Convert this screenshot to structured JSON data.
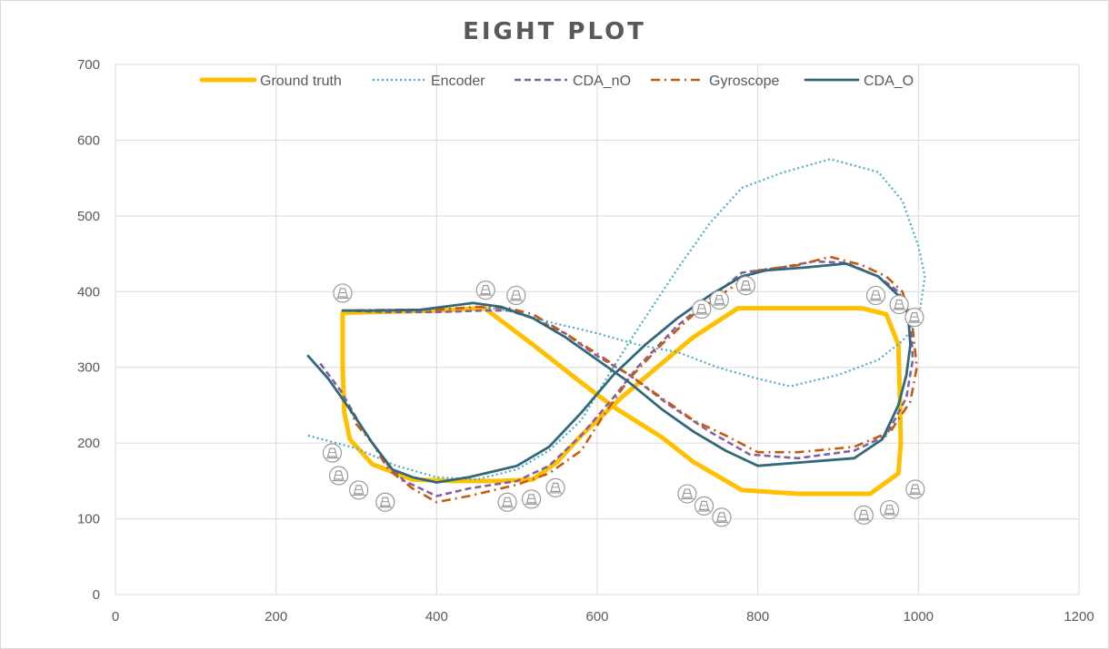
{
  "chart_data": {
    "type": "line",
    "title": "EIGHT PLOT",
    "xlabel": "",
    "ylabel": "",
    "xlim": [
      0,
      1200
    ],
    "ylim": [
      0,
      700
    ],
    "x_ticks": [
      "0",
      "200",
      "400",
      "600",
      "800",
      "1000",
      "1200"
    ],
    "y_ticks": [
      "0",
      "100",
      "200",
      "300",
      "400",
      "500",
      "600",
      "700"
    ],
    "grid": true,
    "legend_position": "top",
    "series": [
      {
        "name": "Ground truth",
        "color": "#FFC000",
        "style": "solid-thick",
        "points": [
          [
            283,
            372
          ],
          [
            400,
            375
          ],
          [
            460,
            378
          ],
          [
            520,
            330
          ],
          [
            580,
            280
          ],
          [
            620,
            248
          ],
          [
            680,
            208
          ],
          [
            720,
            175
          ],
          [
            780,
            138
          ],
          [
            850,
            133
          ],
          [
            940,
            133
          ],
          [
            975,
            160
          ],
          [
            978,
            200
          ],
          [
            977,
            260
          ],
          [
            975,
            330
          ],
          [
            960,
            370
          ],
          [
            930,
            378
          ],
          [
            850,
            378
          ],
          [
            775,
            378
          ],
          [
            720,
            340
          ],
          [
            680,
            305
          ],
          [
            630,
            260
          ],
          [
            580,
            210
          ],
          [
            550,
            175
          ],
          [
            520,
            152
          ],
          [
            480,
            150
          ],
          [
            420,
            150
          ],
          [
            370,
            152
          ],
          [
            320,
            172
          ],
          [
            292,
            205
          ],
          [
            285,
            240
          ],
          [
            283,
            300
          ],
          [
            283,
            372
          ]
        ]
      },
      {
        "name": "Encoder",
        "color": "#4BACC6",
        "style": "dotted",
        "points": [
          [
            240,
            210
          ],
          [
            300,
            193
          ],
          [
            350,
            170
          ],
          [
            400,
            155
          ],
          [
            450,
            152
          ],
          [
            500,
            165
          ],
          [
            540,
            190
          ],
          [
            580,
            230
          ],
          [
            620,
            300
          ],
          [
            650,
            350
          ],
          [
            700,
            430
          ],
          [
            740,
            490
          ],
          [
            780,
            537
          ],
          [
            830,
            557
          ],
          [
            890,
            575
          ],
          [
            950,
            558
          ],
          [
            980,
            520
          ],
          [
            1000,
            460
          ],
          [
            1008,
            420
          ],
          [
            1000,
            360
          ],
          [
            980,
            335
          ],
          [
            950,
            310
          ],
          [
            900,
            290
          ],
          [
            840,
            275
          ],
          [
            800,
            285
          ],
          [
            750,
            300
          ],
          [
            700,
            320
          ],
          [
            650,
            330
          ],
          [
            600,
            345
          ],
          [
            540,
            360
          ],
          [
            490,
            375
          ],
          [
            450,
            380
          ]
        ]
      },
      {
        "name": "CDA_nO",
        "color": "#8064A2",
        "style": "dashed",
        "points": [
          [
            255,
            305
          ],
          [
            280,
            270
          ],
          [
            310,
            215
          ],
          [
            340,
            170
          ],
          [
            360,
            150
          ],
          [
            400,
            130
          ],
          [
            440,
            140
          ],
          [
            500,
            150
          ],
          [
            540,
            170
          ],
          [
            580,
            210
          ],
          [
            620,
            260
          ],
          [
            650,
            300
          ],
          [
            700,
            355
          ],
          [
            740,
            390
          ],
          [
            780,
            425
          ],
          [
            830,
            432
          ],
          [
            870,
            440
          ],
          [
            910,
            438
          ],
          [
            950,
            420
          ],
          [
            975,
            400
          ],
          [
            990,
            370
          ],
          [
            993,
            310
          ],
          [
            985,
            260
          ],
          [
            960,
            210
          ],
          [
            920,
            190
          ],
          [
            850,
            180
          ],
          [
            790,
            185
          ],
          [
            740,
            215
          ],
          [
            690,
            250
          ],
          [
            640,
            290
          ],
          [
            600,
            315
          ],
          [
            560,
            345
          ],
          [
            520,
            365
          ],
          [
            490,
            375
          ],
          [
            460,
            375
          ],
          [
            400,
            373
          ],
          [
            340,
            373
          ],
          [
            283,
            375
          ]
        ]
      },
      {
        "name": "Gyroscope",
        "color": "#C55A11",
        "style": "dashdot",
        "points": [
          [
            290,
            250
          ],
          [
            300,
            225
          ],
          [
            320,
            200
          ],
          [
            340,
            165
          ],
          [
            370,
            140
          ],
          [
            400,
            122
          ],
          [
            440,
            130
          ],
          [
            500,
            145
          ],
          [
            540,
            160
          ],
          [
            580,
            190
          ],
          [
            610,
            240
          ],
          [
            640,
            285
          ],
          [
            680,
            330
          ],
          [
            720,
            370
          ],
          [
            760,
            400
          ],
          [
            800,
            428
          ],
          [
            850,
            435
          ],
          [
            890,
            446
          ],
          [
            930,
            435
          ],
          [
            960,
            420
          ],
          [
            980,
            400
          ],
          [
            992,
            360
          ],
          [
            998,
            300
          ],
          [
            990,
            255
          ],
          [
            965,
            215
          ],
          [
            920,
            195
          ],
          [
            850,
            188
          ],
          [
            800,
            188
          ],
          [
            760,
            210
          ],
          [
            720,
            230
          ],
          [
            680,
            260
          ],
          [
            640,
            290
          ],
          [
            600,
            318
          ],
          [
            560,
            345
          ],
          [
            520,
            370
          ],
          [
            490,
            378
          ],
          [
            450,
            380
          ],
          [
            400,
            376
          ],
          [
            350,
            376
          ],
          [
            283,
            375
          ]
        ]
      },
      {
        "name": "CDA_O",
        "color": "#31697A",
        "style": "solid",
        "points": [
          [
            240,
            315
          ],
          [
            265,
            285
          ],
          [
            295,
            240
          ],
          [
            320,
            200
          ],
          [
            345,
            165
          ],
          [
            370,
            155
          ],
          [
            400,
            148
          ],
          [
            440,
            155
          ],
          [
            500,
            170
          ],
          [
            540,
            195
          ],
          [
            580,
            240
          ],
          [
            620,
            290
          ],
          [
            660,
            330
          ],
          [
            700,
            365
          ],
          [
            740,
            395
          ],
          [
            780,
            420
          ],
          [
            810,
            428
          ],
          [
            860,
            432
          ],
          [
            910,
            437
          ],
          [
            950,
            420
          ],
          [
            975,
            395
          ],
          [
            987,
            370
          ],
          [
            990,
            330
          ],
          [
            985,
            290
          ],
          [
            975,
            250
          ],
          [
            955,
            205
          ],
          [
            920,
            180
          ],
          [
            860,
            175
          ],
          [
            800,
            170
          ],
          [
            760,
            190
          ],
          [
            720,
            215
          ],
          [
            680,
            245
          ],
          [
            640,
            280
          ],
          [
            600,
            310
          ],
          [
            560,
            340
          ],
          [
            520,
            365
          ],
          [
            480,
            380
          ],
          [
            445,
            385
          ],
          [
            380,
            376
          ],
          [
            320,
            375
          ],
          [
            283,
            375
          ]
        ]
      }
    ],
    "markers": {
      "icon": "cone-icon",
      "points": [
        [
          283,
          398
        ],
        [
          461,
          402
        ],
        [
          499,
          395
        ],
        [
          270,
          187
        ],
        [
          278,
          157
        ],
        [
          303,
          138
        ],
        [
          336,
          122
        ],
        [
          488,
          122
        ],
        [
          518,
          126
        ],
        [
          548,
          141
        ],
        [
          730,
          377
        ],
        [
          752,
          389
        ],
        [
          785,
          408
        ],
        [
          712,
          133
        ],
        [
          733,
          117
        ],
        [
          755,
          102
        ],
        [
          947,
          395
        ],
        [
          976,
          383
        ],
        [
          995,
          366
        ],
        [
          932,
          105
        ],
        [
          964,
          112
        ],
        [
          996,
          139
        ]
      ]
    }
  }
}
